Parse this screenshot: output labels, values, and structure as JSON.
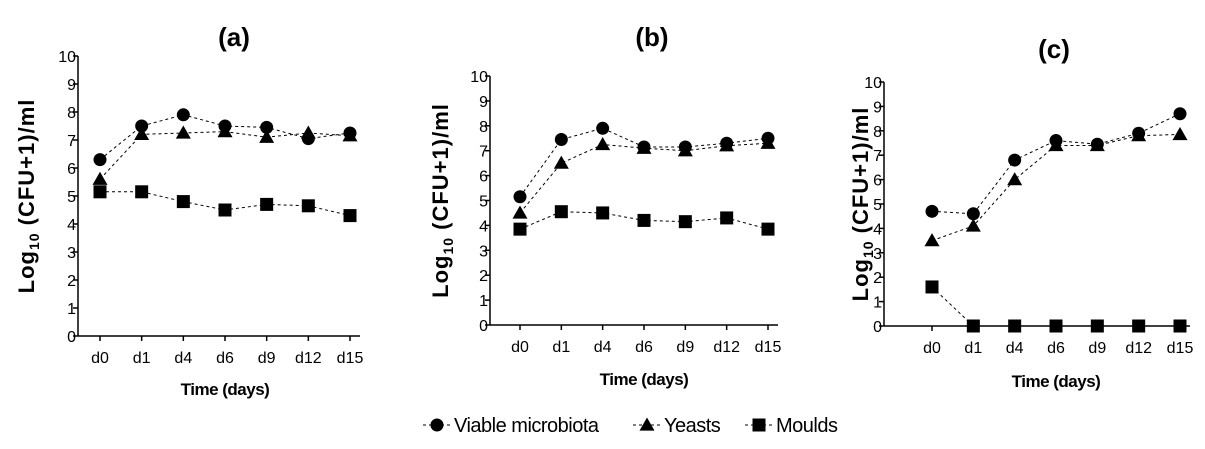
{
  "figure": {
    "legend": [
      {
        "name": "Viable microbiota",
        "marker": "circle"
      },
      {
        "name": "Yeasts",
        "marker": "triangle"
      },
      {
        "name": "Moulds",
        "marker": "square"
      }
    ]
  },
  "chart_data": [
    {
      "type": "line",
      "title": "(a)",
      "xlabel": "Time (days)",
      "ylabel": "Log10 (CFU+1)/ml",
      "ylabel_parts": {
        "pre": "Log",
        "sub": "10",
        "post": " (CFU+1)/ml"
      },
      "categories": [
        "d0",
        "d1",
        "d4",
        "d6",
        "d9",
        "d12",
        "d15"
      ],
      "yticks": [
        0,
        1,
        2,
        3,
        4,
        5,
        6,
        7,
        8,
        9,
        10
      ],
      "ylim": [
        0,
        10
      ],
      "series": [
        {
          "name": "Viable microbiota",
          "marker": "circle",
          "values": [
            6.3,
            7.5,
            7.9,
            7.5,
            7.45,
            7.05,
            7.25
          ]
        },
        {
          "name": "Yeasts",
          "marker": "triangle",
          "values": [
            5.6,
            7.2,
            7.25,
            7.3,
            7.1,
            7.25,
            7.15
          ]
        },
        {
          "name": "Moulds",
          "marker": "square",
          "values": [
            5.15,
            5.15,
            4.8,
            4.5,
            4.7,
            4.65,
            4.3
          ]
        }
      ]
    },
    {
      "type": "line",
      "title": "(b)",
      "xlabel": "Time (days)",
      "ylabel": "Log10 (CFU+1)/ml",
      "ylabel_parts": {
        "pre": "Log",
        "sub": "10",
        "post": " (CFU+1)/ml"
      },
      "categories": [
        "d0",
        "d1",
        "d4",
        "d6",
        "d9",
        "d12",
        "d15"
      ],
      "yticks": [
        0,
        1,
        2,
        3,
        4,
        5,
        6,
        7,
        8,
        9,
        10
      ],
      "ylim": [
        0,
        10
      ],
      "series": [
        {
          "name": "Viable microbiota",
          "marker": "circle",
          "values": [
            5.15,
            7.45,
            7.9,
            7.15,
            7.15,
            7.3,
            7.5
          ]
        },
        {
          "name": "Yeasts",
          "marker": "triangle",
          "values": [
            4.5,
            6.5,
            7.25,
            7.1,
            7.0,
            7.2,
            7.3
          ]
        },
        {
          "name": "Moulds",
          "marker": "square",
          "values": [
            3.85,
            4.55,
            4.5,
            4.2,
            4.15,
            4.3,
            3.85
          ]
        }
      ]
    },
    {
      "type": "line",
      "title": "(c)",
      "xlabel": "Time (days)",
      "ylabel": "Log10 (CFU+1)/ml",
      "ylabel_parts": {
        "pre": "Log",
        "sub": "10",
        "post": " (CFU+1)/ml"
      },
      "categories": [
        "d0",
        "d1",
        "d4",
        "d6",
        "d9",
        "d12",
        "d15"
      ],
      "yticks": [
        0,
        1,
        2,
        3,
        4,
        5,
        6,
        7,
        8,
        9,
        10
      ],
      "ylim": [
        0,
        10
      ],
      "series": [
        {
          "name": "Viable microbiota",
          "marker": "circle",
          "values": [
            4.7,
            4.6,
            6.8,
            7.6,
            7.45,
            7.9,
            8.7
          ]
        },
        {
          "name": "Yeasts",
          "marker": "triangle",
          "values": [
            3.5,
            4.1,
            6.0,
            7.4,
            7.4,
            7.8,
            7.85
          ]
        },
        {
          "name": "Moulds",
          "marker": "square",
          "values": [
            1.6,
            0,
            0,
            0,
            0,
            0,
            0
          ]
        }
      ]
    }
  ]
}
